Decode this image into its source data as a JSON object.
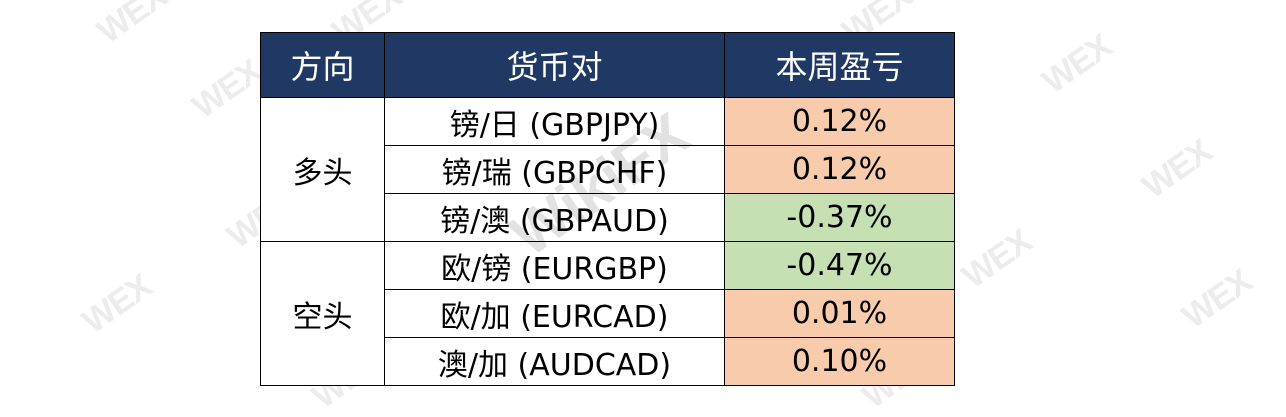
{
  "headers": {
    "direction": "方向",
    "pair": "货币对",
    "pnl": "本周盈亏"
  },
  "groups": [
    {
      "label": "多头",
      "rows": [
        {
          "pair": "镑/日 (GBPJPY)",
          "pnl": "0.12%"
        },
        {
          "pair": "镑/瑞 (GBPCHF)",
          "pnl": "0.12%"
        },
        {
          "pair": "镑/澳 (GBPAUD)",
          "pnl": "-0.37%"
        }
      ]
    },
    {
      "label": "空头",
      "rows": [
        {
          "pair": "欧/镑 (EURGBP)",
          "pnl": "-0.47%"
        },
        {
          "pair": "欧/加 (EURCAD)",
          "pnl": "0.01%"
        },
        {
          "pair": "澳/加 (AUDCAD)",
          "pnl": "0.10%"
        }
      ]
    }
  ],
  "colors": {
    "header_bg": "#1f3864",
    "positive_bg": "#f8cbad",
    "negative_bg": "#c6e0b4"
  }
}
